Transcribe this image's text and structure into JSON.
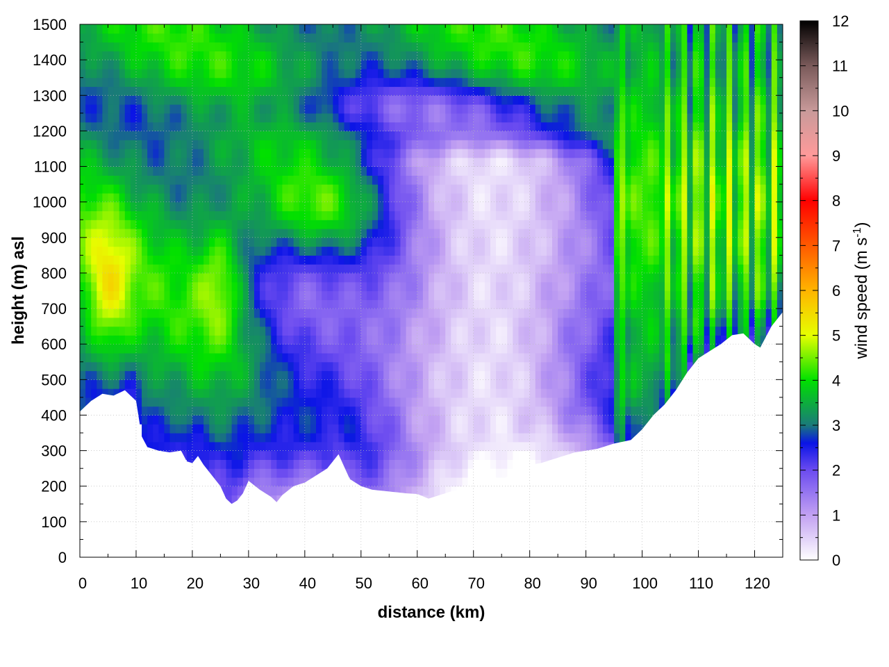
{
  "chart_data": {
    "type": "heatmap",
    "title": "",
    "xlabel": "distance (km)",
    "ylabel": "height (m) asl",
    "xlim": [
      0,
      125
    ],
    "ylim": [
      0,
      1500
    ],
    "x_ticks": [
      0,
      10,
      20,
      30,
      40,
      50,
      60,
      70,
      80,
      90,
      100,
      110,
      120
    ],
    "y_ticks": [
      0,
      100,
      200,
      300,
      400,
      500,
      600,
      700,
      800,
      900,
      1000,
      1100,
      1200,
      1300,
      1400,
      1500
    ],
    "grid": true,
    "colorbar": {
      "label_main": "wind speed (m s",
      "label_sup": "-1",
      "label_end": ")",
      "min": 0,
      "max": 12,
      "ticks": [
        0,
        1,
        2,
        3,
        4,
        5,
        6,
        7,
        8,
        9,
        10,
        11,
        12
      ],
      "stops": [
        {
          "v": 0,
          "c": "#ffffff"
        },
        {
          "v": 1,
          "c": "#c2a1f2"
        },
        {
          "v": 2,
          "c": "#6b4bf0"
        },
        {
          "v": 2.6,
          "c": "#0a14e6"
        },
        {
          "v": 3,
          "c": "#1a7a7a"
        },
        {
          "v": 4,
          "c": "#00e000"
        },
        {
          "v": 5,
          "c": "#e6ff00"
        },
        {
          "v": 6,
          "c": "#ffb400"
        },
        {
          "v": 7,
          "c": "#ff5a00"
        },
        {
          "v": 8,
          "c": "#ff0000"
        },
        {
          "v": 9,
          "c": "#ff9a9a"
        },
        {
          "v": 10,
          "c": "#c89a9a"
        },
        {
          "v": 11,
          "c": "#7a5a5a"
        },
        {
          "v": 12,
          "c": "#000000"
        }
      ]
    },
    "terrain_profile": {
      "distance_km": [
        0,
        2,
        4,
        6,
        8,
        10,
        11,
        12,
        14,
        16,
        18,
        19,
        20,
        21,
        22,
        23,
        24,
        25,
        26,
        27,
        28,
        29,
        30,
        32,
        34,
        35,
        36,
        38,
        40,
        42,
        44,
        45,
        46,
        48,
        50,
        52,
        55,
        58,
        60,
        62,
        64,
        66,
        68,
        70,
        72,
        75,
        78,
        80,
        82,
        85,
        88,
        90,
        92,
        95,
        98,
        100,
        102,
        104,
        106,
        108,
        110,
        112,
        114,
        116,
        118,
        120,
        121,
        122,
        123,
        124,
        125
      ],
      "ground_height_m": [
        410,
        440,
        460,
        455,
        470,
        440,
        340,
        310,
        300,
        295,
        300,
        270,
        265,
        285,
        260,
        240,
        220,
        200,
        165,
        150,
        160,
        180,
        215,
        190,
        170,
        155,
        175,
        200,
        210,
        230,
        250,
        270,
        290,
        220,
        200,
        190,
        185,
        180,
        178,
        165,
        175,
        185,
        190,
        195,
        205,
        220,
        240,
        260,
        265,
        280,
        295,
        300,
        305,
        320,
        330,
        360,
        400,
        430,
        470,
        520,
        560,
        580,
        600,
        625,
        630,
        600,
        590,
        620,
        650,
        670,
        690
      ]
    },
    "wind_speed_pattern": {
      "description_keys": [
        "west_section_0_30km",
        "central_blue_30_50km",
        "calm_core_50_95km",
        "east_section_95_125km"
      ],
      "west_section_0_30km": {
        "low_level_m_s": 3.5,
        "jet_core_m_s": 5.0,
        "jet_core_distance_km": 5,
        "jet_core_height_m": 750
      },
      "central_blue_30_50km": {
        "low_level_m_s": 2.4,
        "mid_level_m_s": 5.2
      },
      "calm_core_50_95km": {
        "min_m_s": 0.2,
        "height_range_m": [
          180,
          1100
        ]
      },
      "east_section_95_125km": {
        "low_level_m_s": 3.5,
        "peak_m_s": 4.3
      }
    }
  }
}
